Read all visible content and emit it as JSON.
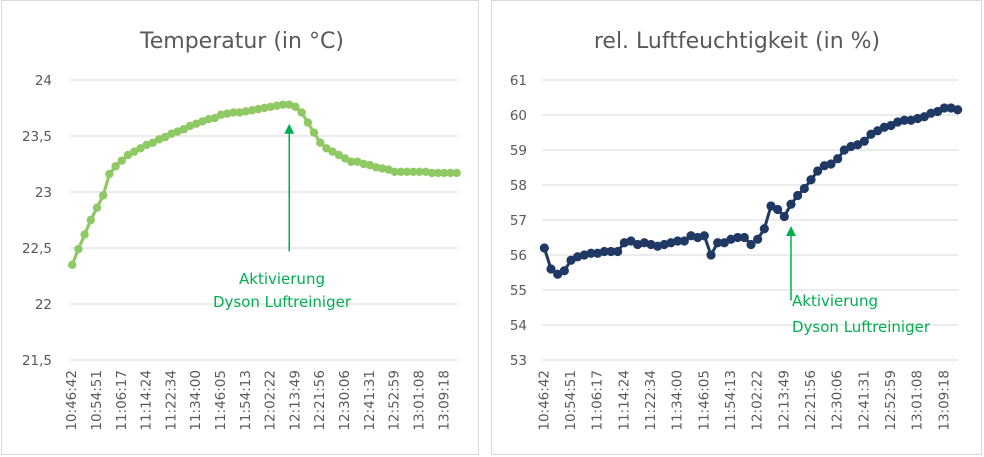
{
  "chart_data": [
    {
      "type": "line",
      "title": "Temperatur (in °C)",
      "xlabel": "",
      "ylabel": "",
      "ylim": [
        21.5,
        24
      ],
      "yticks": [
        "21,5",
        "22",
        "22,5",
        "23",
        "23,5",
        "24"
      ],
      "ytick_values": [
        21.5,
        22,
        22.5,
        23,
        23.5,
        24
      ],
      "x_tick_labels": [
        "10:46:42",
        "10:54:51",
        "11:06:17",
        "11:14:24",
        "11:22:34",
        "11:34:00",
        "11:46:05",
        "11:54:13",
        "12:02:22",
        "12:13:49",
        "12:21:56",
        "12:30:06",
        "12:41:31",
        "12:52:59",
        "13:01:08",
        "13:09:18"
      ],
      "grid": true,
      "legend": "none",
      "series": [
        {
          "color": "#8fc964",
          "values": [
            22.35,
            22.49,
            22.62,
            22.75,
            22.86,
            22.97,
            23.16,
            23.23,
            23.28,
            23.33,
            23.36,
            23.39,
            23.42,
            23.44,
            23.47,
            23.49,
            23.52,
            23.54,
            23.56,
            23.59,
            23.61,
            23.63,
            23.65,
            23.66,
            23.69,
            23.7,
            23.71,
            23.71,
            23.72,
            23.73,
            23.74,
            23.75,
            23.76,
            23.77,
            23.78,
            23.78,
            23.76,
            23.71,
            23.62,
            23.53,
            23.44,
            23.39,
            23.36,
            23.33,
            23.3,
            23.27,
            23.27,
            23.25,
            23.24,
            23.22,
            23.21,
            23.2,
            23.18,
            23.18,
            23.18,
            23.18,
            23.18,
            23.18,
            23.17,
            23.17,
            23.17,
            23.17,
            23.17
          ]
        }
      ],
      "annotation": {
        "lines": [
          "Aktivierung",
          "Dyson Luftreiniger"
        ],
        "color": "#00b050",
        "x_index": 35,
        "arrow_from_y": 22.47,
        "arrow_to_y": 23.6
      }
    },
    {
      "type": "line",
      "title": "rel. Luftfeuchtigkeit (in %)",
      "xlabel": "",
      "ylabel": "",
      "ylim": [
        53,
        61
      ],
      "yticks": [
        "53",
        "54",
        "55",
        "56",
        "57",
        "58",
        "59",
        "60",
        "61"
      ],
      "ytick_values": [
        53,
        54,
        55,
        56,
        57,
        58,
        59,
        60,
        61
      ],
      "x_tick_labels": [
        "10:46:42",
        "10:54:51",
        "11:06:17",
        "11:14:24",
        "11:22:34",
        "11:34:00",
        "11:46:05",
        "11:54:13",
        "12:02:22",
        "12:13:49",
        "12:21:56",
        "12:30:06",
        "12:41:31",
        "12:52:59",
        "13:01:08",
        "13:09:18"
      ],
      "grid": true,
      "legend": "none",
      "series": [
        {
          "color": "#203864",
          "values": [
            56.2,
            55.6,
            55.45,
            55.55,
            55.85,
            55.95,
            56.0,
            56.05,
            56.05,
            56.1,
            56.1,
            56.1,
            56.35,
            56.4,
            56.3,
            56.35,
            56.3,
            56.25,
            56.3,
            56.35,
            56.4,
            56.4,
            56.55,
            56.5,
            56.55,
            56.0,
            56.35,
            56.35,
            56.45,
            56.5,
            56.5,
            56.3,
            56.45,
            56.75,
            57.4,
            57.3,
            57.1,
            57.45,
            57.7,
            57.9,
            58.15,
            58.4,
            58.55,
            58.6,
            58.75,
            59.0,
            59.1,
            59.15,
            59.25,
            59.45,
            59.55,
            59.65,
            59.7,
            59.8,
            59.85,
            59.85,
            59.9,
            59.95,
            60.05,
            60.1,
            60.2,
            60.2,
            60.15
          ]
        }
      ],
      "annotation": {
        "lines": [
          "Aktivierung",
          "Dyson Luftreiniger"
        ],
        "color": "#00b050",
        "x_index": 37,
        "arrow_from_y": 54.7,
        "arrow_to_y": 56.8
      }
    }
  ]
}
